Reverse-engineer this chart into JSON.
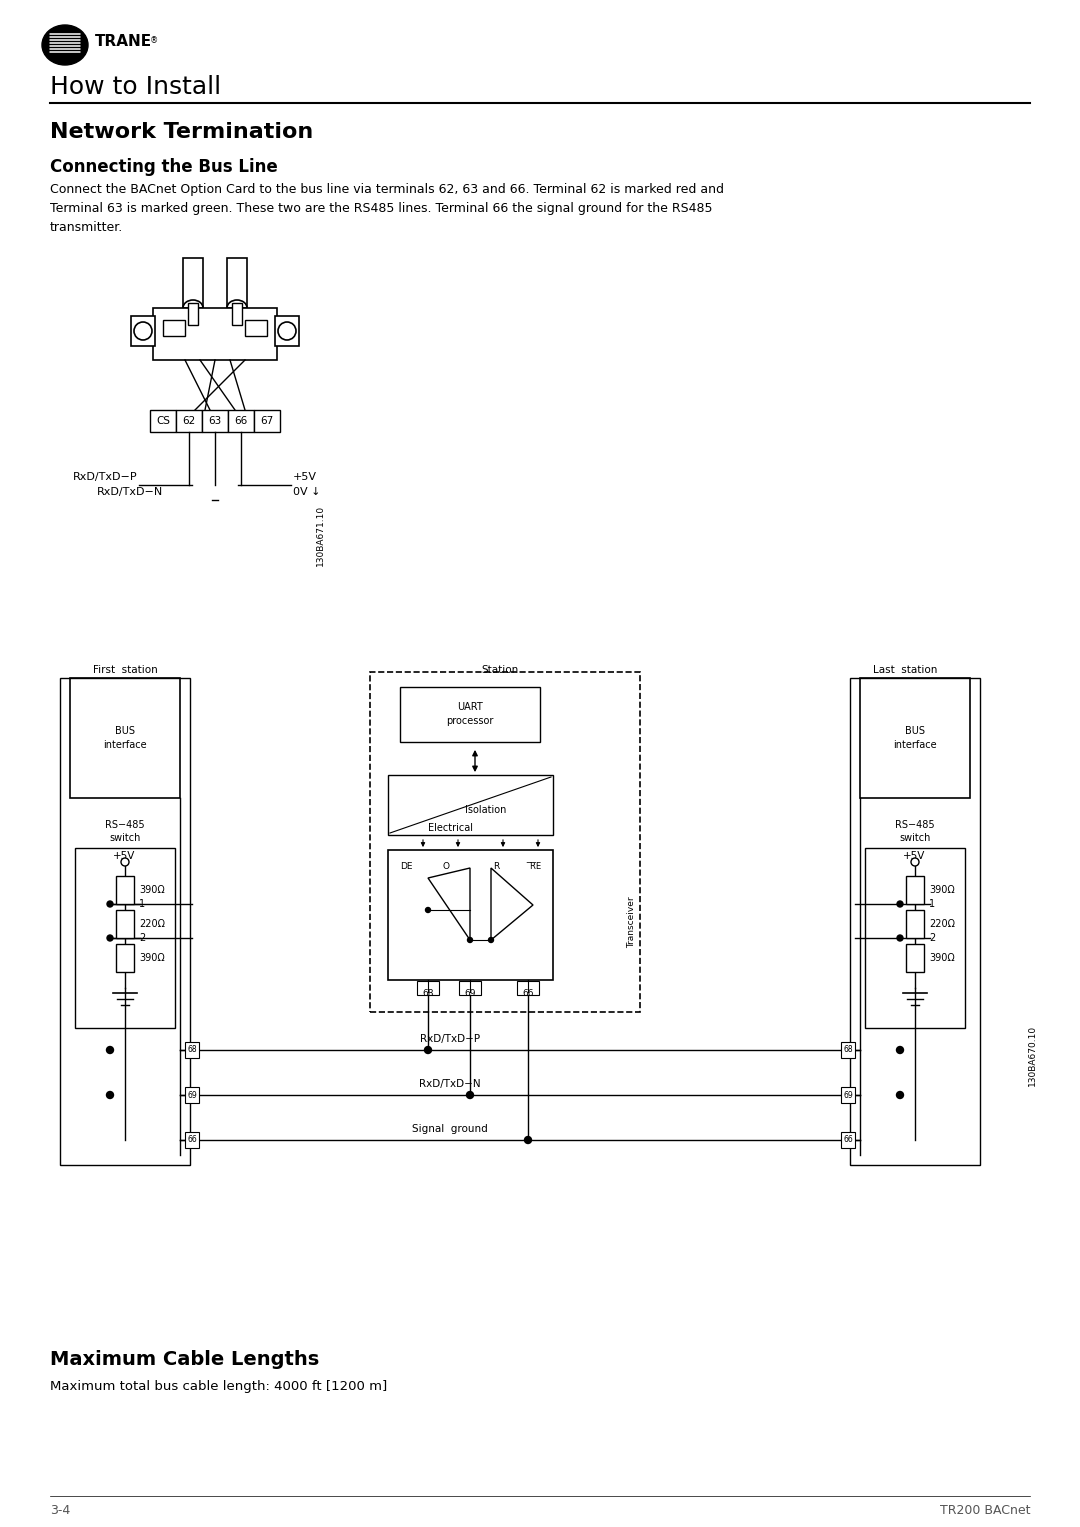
{
  "page_title": "How to Install",
  "section_title": "Network Termination",
  "subsection_title": "Connecting the Bus Line",
  "body_text": "Connect the BACnet Option Card to the bus line via terminals 62, 63 and 66. Terminal 62 is marked red and\nTerminal 63 is marked green. These two are the RS485 lines. Terminal 66 the signal ground for the RS485\ntransmitter.",
  "max_cable_title": "Maximum Cable Lengths",
  "max_cable_text": "Maximum total bus cable length: 4000 ft [1200 m]",
  "footer_left": "3-4",
  "footer_right": "TR200 BACnet",
  "bg_color": "#ffffff"
}
